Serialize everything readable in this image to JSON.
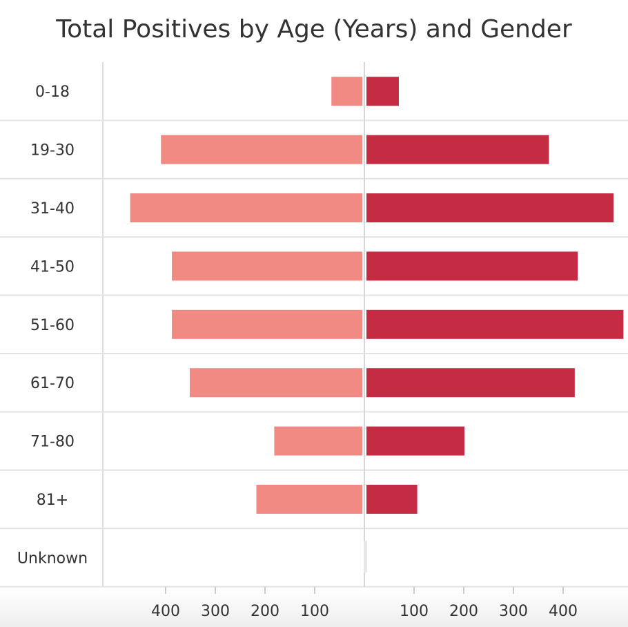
{
  "chart_data": {
    "type": "bar",
    "orientation": "horizontal",
    "layout": "diverging",
    "title": "Total Positives by Age (Years) and Gender",
    "categories": [
      "0-18",
      "19-30",
      "31-40",
      "41-50",
      "51-60",
      "61-70",
      "71-80",
      "81+",
      "Unknown"
    ],
    "series": [
      {
        "color": "#f08a82",
        "side": "left",
        "values": [
          65,
          408,
          470,
          386,
          386,
          350,
          180,
          216,
          0
        ]
      },
      {
        "color": "#c52b43",
        "side": "right",
        "values": [
          68,
          370,
          500,
          428,
          520,
          422,
          200,
          105,
          3
        ]
      }
    ],
    "x_ticks": [
      {
        "label": "400",
        "value": -400
      },
      {
        "label": "300",
        "value": -300
      },
      {
        "label": "200",
        "value": -200
      },
      {
        "label": "100",
        "value": -100
      },
      {
        "label": "100",
        "value": 100
      },
      {
        "label": "200",
        "value": 200
      },
      {
        "label": "300",
        "value": 300
      },
      {
        "label": "400",
        "value": 400
      }
    ],
    "legend": "none",
    "grid": "horizontal row separators"
  }
}
